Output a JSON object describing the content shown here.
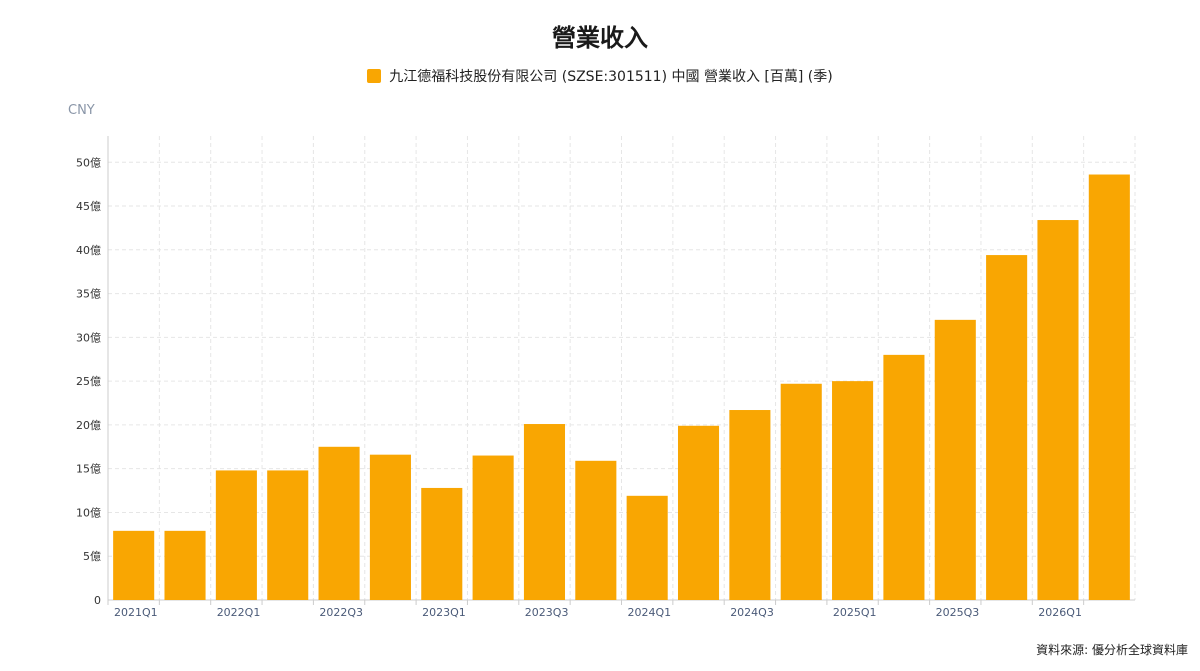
{
  "title": "營業收入",
  "legend_label": "九江德福科技股份有限公司 (SZSE:301511) 中國 營業收入 [百萬] (季)",
  "unit_label": "CNY",
  "source_text": "資料來源: 優分析全球資料庫",
  "colors": {
    "bar": "#F9A602",
    "grid": "#e6e6e6",
    "axis": "#cccccc"
  },
  "chart_data": {
    "type": "bar",
    "title": "營業收入",
    "ylabel": "CNY",
    "ylim": [
      0,
      53
    ],
    "grid": true,
    "legend_placement": "top-center",
    "y_ticks": [
      {
        "value": 0,
        "label": "0"
      },
      {
        "value": 5,
        "label": "5億"
      },
      {
        "value": 10,
        "label": "10億"
      },
      {
        "value": 15,
        "label": "15億"
      },
      {
        "value": 20,
        "label": "20億"
      },
      {
        "value": 25,
        "label": "25億"
      },
      {
        "value": 30,
        "label": "30億"
      },
      {
        "value": 35,
        "label": "35億"
      },
      {
        "value": 40,
        "label": "40億"
      },
      {
        "value": 45,
        "label": "45億"
      },
      {
        "value": 50,
        "label": "50億"
      }
    ],
    "categories": [
      "2021Q1",
      "2021Q2",
      "2022Q1",
      "2022Q2",
      "2022Q3",
      "2022Q4",
      "2023Q1",
      "2023Q2",
      "2023Q3",
      "2023Q4",
      "2024Q1",
      "2024Q2",
      "2024Q3",
      "2024Q4",
      "2025Q1",
      "2025Q2",
      "2025Q3",
      "2025Q4",
      "2026Q1",
      "2026Q2"
    ],
    "x_tick_labels": [
      "2021Q1",
      "",
      "2022Q1",
      "",
      "2022Q3",
      "",
      "2023Q1",
      "",
      "2023Q3",
      "",
      "2024Q1",
      "",
      "2024Q3",
      "",
      "2025Q1",
      "",
      "2025Q3",
      "",
      "2026Q1",
      ""
    ],
    "series": [
      {
        "name": "九江德福科技股份有限公司 (SZSE:301511) 中國 營業收入 [百萬] (季)",
        "values": [
          7.9,
          7.9,
          14.8,
          14.8,
          17.5,
          16.6,
          12.8,
          16.5,
          20.1,
          15.9,
          11.9,
          19.9,
          21.7,
          24.7,
          25.0,
          28.0,
          32.0,
          39.4,
          43.4,
          48.6
        ]
      }
    ]
  }
}
